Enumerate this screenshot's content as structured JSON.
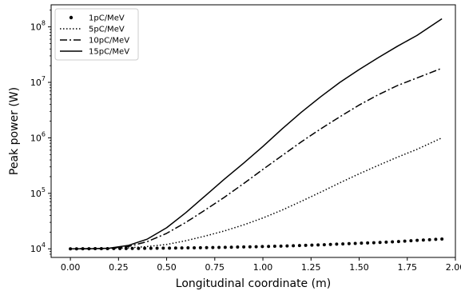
{
  "chart_data": {
    "type": "line",
    "xlabel": "Longitudinal coordinate (m)",
    "ylabel": "Peak power (W)",
    "xlim": [
      -0.1,
      2.0
    ],
    "ylim": [
      7000,
      250000000
    ],
    "yscale": "log",
    "grid": false,
    "legend_position": "top-left",
    "xticks": [
      "0.00",
      "0.25",
      "0.50",
      "0.75",
      "1.00",
      "1.25",
      "1.50",
      "1.75",
      "2.00"
    ],
    "xtick_values": [
      0,
      0.25,
      0.5,
      0.75,
      1.0,
      1.25,
      1.5,
      1.75,
      2.0
    ],
    "yticks": [
      {
        "base": "10",
        "exp": "4",
        "value": 10000
      },
      {
        "base": "10",
        "exp": "5",
        "value": 100000
      },
      {
        "base": "10",
        "exp": "6",
        "value": 1000000
      },
      {
        "base": "10",
        "exp": "7",
        "value": 10000000
      },
      {
        "base": "10",
        "exp": "8",
        "value": 100000000
      }
    ],
    "series": [
      {
        "name": "1pC/MeV",
        "style": "markers",
        "color": "#000000",
        "x": [
          0,
          0.1,
          0.2,
          0.3,
          0.4,
          0.5,
          0.6,
          0.7,
          0.8,
          0.9,
          1.0,
          1.1,
          1.2,
          1.3,
          1.4,
          1.5,
          1.6,
          1.7,
          1.8,
          1.93
        ],
        "y": [
          10000,
          10050,
          10100,
          10150,
          10200,
          10300,
          10400,
          10500,
          10650,
          10800,
          11000,
          11200,
          11500,
          11800,
          12200,
          12600,
          13000,
          13500,
          14200,
          15000
        ]
      },
      {
        "name": "5pC/MeV",
        "style": "dotted",
        "color": "#000000",
        "x": [
          0,
          0.1,
          0.2,
          0.3,
          0.4,
          0.5,
          0.6,
          0.7,
          0.8,
          0.9,
          1.0,
          1.1,
          1.2,
          1.3,
          1.4,
          1.5,
          1.6,
          1.7,
          1.8,
          1.93
        ],
        "y": [
          10000,
          10050,
          10150,
          10400,
          11000,
          12000,
          14000,
          17000,
          21000,
          27000,
          36000,
          50000,
          72000,
          105000,
          155000,
          225000,
          320000,
          450000,
          620000,
          1000000
        ]
      },
      {
        "name": "10pC/MeV",
        "style": "dashdot",
        "color": "#000000",
        "x": [
          0,
          0.1,
          0.2,
          0.3,
          0.4,
          0.5,
          0.6,
          0.7,
          0.8,
          0.9,
          1.0,
          1.1,
          1.2,
          1.3,
          1.4,
          1.5,
          1.6,
          1.7,
          1.8,
          1.93
        ],
        "y": [
          10000,
          10050,
          10200,
          11000,
          13500,
          19000,
          30000,
          50000,
          85000,
          150000,
          270000,
          480000,
          850000,
          1450000,
          2400000,
          3900000,
          6000000,
          8800000,
          12000000,
          18000000
        ]
      },
      {
        "name": "15pC/MeV",
        "style": "solid",
        "color": "#000000",
        "x": [
          0,
          0.1,
          0.2,
          0.3,
          0.4,
          0.5,
          0.6,
          0.7,
          0.8,
          0.9,
          1.0,
          1.1,
          1.2,
          1.3,
          1.4,
          1.5,
          1.6,
          1.7,
          1.8,
          1.93
        ],
        "y": [
          10000,
          10050,
          10250,
          11500,
          15000,
          24000,
          45000,
          90000,
          180000,
          350000,
          700000,
          1450000,
          2900000,
          5500000,
          10000000,
          17000000,
          28000000,
          45000000,
          70000000,
          140000000
        ]
      }
    ]
  }
}
